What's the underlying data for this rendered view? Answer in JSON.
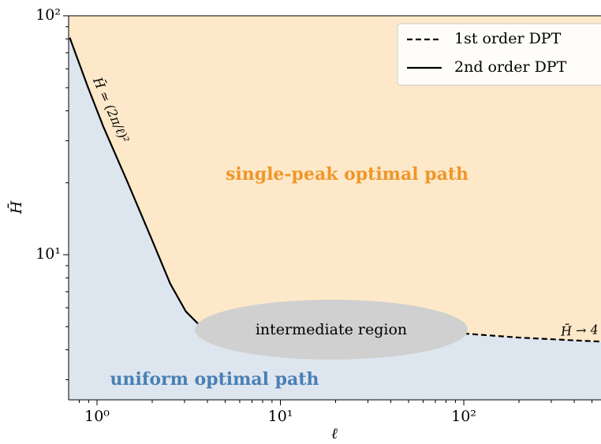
{
  "chart_data": {
    "type": "line",
    "x_label": "ℓ",
    "y_label": "H̄",
    "log_x": true,
    "log_y": true,
    "xlim": [
      0.7,
      560
    ],
    "ylim": [
      2.47,
      100
    ],
    "xticks": [
      {
        "value": 1,
        "label": "10⁰"
      },
      {
        "value": 10,
        "label": "10¹"
      },
      {
        "value": 100,
        "label": "10²"
      }
    ],
    "yticks": [
      {
        "value": 10,
        "label": "10¹"
      },
      {
        "value": 100,
        "label": "10²"
      }
    ],
    "xminorticks": [
      0.8,
      0.9,
      2,
      3,
      4,
      5,
      6,
      7,
      8,
      9,
      20,
      30,
      40,
      50,
      60,
      70,
      80,
      90,
      200,
      300,
      400,
      500
    ],
    "yminorticks": [
      3,
      4,
      5,
      6,
      7,
      8,
      9,
      20,
      30,
      40,
      50,
      60,
      70,
      80,
      90
    ],
    "legend_position": "upper right",
    "series": [
      {
        "name": "1st order DPT",
        "color": "#000000",
        "dash": true,
        "x": [
          100,
          200,
          400,
          560
        ],
        "values": [
          4.68,
          4.5,
          4.38,
          4.33
        ]
      },
      {
        "name": "2nd order DPT",
        "color": "#000000",
        "dash": false,
        "x": [
          0.71,
          0.89,
          1.08,
          1.46,
          1.96,
          2.51,
          3.05,
          3.54,
          10,
          50,
          100
        ],
        "values": [
          81,
          50.5,
          34.5,
          20.3,
          11.9,
          7.55,
          5.79,
          5.16,
          4.9,
          4.75,
          4.68
        ]
      }
    ],
    "regions": {
      "upper": {
        "label": "single-peak optimal path",
        "color": "#fde9c9",
        "text_color": "#f0962a"
      },
      "lower": {
        "label": "uniform optimal path",
        "color": "#dde6ef",
        "text_color": "#4a80b4"
      },
      "middle": {
        "label": "intermediate region",
        "color": "#d0d0d0"
      }
    },
    "annotations": [
      "H̄ ≃ (2π/ℓ)²",
      "H̄ → 4"
    ]
  }
}
